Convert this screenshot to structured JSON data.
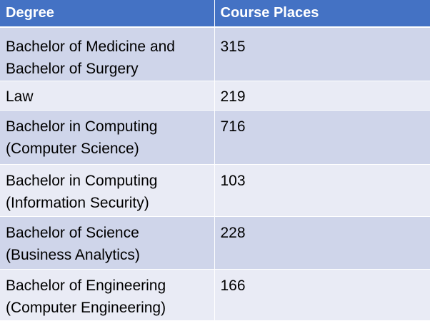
{
  "table": {
    "headers": {
      "degree": "Degree",
      "places": "Course Places"
    },
    "rows": [
      {
        "degree_line1": "Bachelor of Medicine and",
        "degree_line2": "Bachelor of Surgery",
        "places": "315"
      },
      {
        "degree_line1": "Law",
        "degree_line2": "",
        "places": "219"
      },
      {
        "degree_line1": "Bachelor in Computing",
        "degree_line2": "(Computer Science)",
        "places": "716"
      },
      {
        "degree_line1": "Bachelor in Computing",
        "degree_line2": "(Information Security)",
        "places": "103"
      },
      {
        "degree_line1": "Bachelor of Science",
        "degree_line2": "(Business Analytics)",
        "places": "228"
      },
      {
        "degree_line1": "Bachelor of Engineering",
        "degree_line2": "(Computer Engineering)",
        "places": "166"
      }
    ]
  },
  "colors": {
    "header_bg": "#4472c4",
    "row_odd_bg": "#cfd5ea",
    "row_even_bg": "#e9ebf5"
  }
}
